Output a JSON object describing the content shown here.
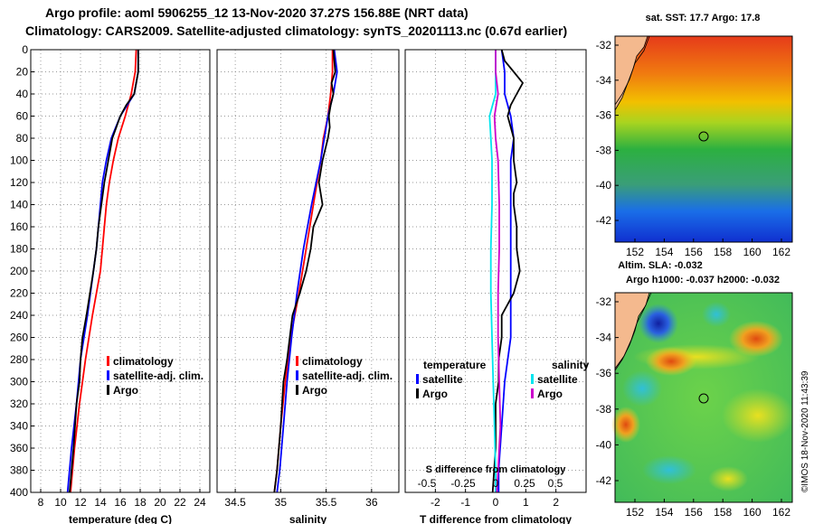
{
  "title_line1": "Argo profile: aoml 5906255_12 13-Nov-2020 37.27S 156.88E (NRT data)",
  "title_line2": "Climatology: CARS2009. Satellite-adjusted climatology: synTS_20201113.nc (0.67d earlier)",
  "watermark": "©IMOS 18-Nov-2020 11:43:39",
  "colors": {
    "climatology": "#ff0000",
    "satellite": "#0000ff",
    "argo": "#000000",
    "sat_salinity": "#00e5ee",
    "argo_salinity": "#cc00cc"
  },
  "chart_data": [
    {
      "id": "temperature",
      "type": "line",
      "xlabel": "temperature (deg C)",
      "xlim": [
        7,
        25
      ],
      "xticks": [
        "8",
        "10",
        "12",
        "14",
        "16",
        "18",
        "20",
        "22",
        "24"
      ],
      "xtick_values": [
        8,
        10,
        12,
        14,
        16,
        18,
        20,
        22,
        24
      ],
      "ylim": [
        0,
        400
      ],
      "yticks": [
        "0",
        "20",
        "40",
        "60",
        "80",
        "100",
        "120",
        "140",
        "160",
        "180",
        "200",
        "220",
        "240",
        "260",
        "280",
        "300",
        "320",
        "340",
        "360",
        "380",
        "400"
      ],
      "ytick_values": [
        0,
        20,
        40,
        60,
        80,
        100,
        120,
        140,
        160,
        180,
        200,
        220,
        240,
        260,
        280,
        300,
        320,
        340,
        360,
        380,
        400
      ],
      "legend": [
        "climatology",
        "satellite-adj. clim.",
        "Argo"
      ],
      "series": [
        {
          "name": "climatology",
          "color": "#ff0000",
          "depth": [
            0,
            20,
            40,
            60,
            80,
            100,
            120,
            140,
            160,
            180,
            200,
            240,
            280,
            320,
            360,
            400
          ],
          "values": [
            17.6,
            17.5,
            17.1,
            16.5,
            15.8,
            15.3,
            14.9,
            14.6,
            14.4,
            14.2,
            14.0,
            13.2,
            12.5,
            11.9,
            11.4,
            11.0
          ]
        },
        {
          "name": "satellite-adj. clim.",
          "color": "#0000ff",
          "depth": [
            0,
            10,
            20,
            40,
            60,
            80,
            100,
            120,
            140,
            160,
            180,
            200,
            240,
            280,
            320,
            360,
            400
          ],
          "values": [
            17.8,
            17.8,
            17.8,
            17.4,
            16.0,
            15.1,
            14.6,
            14.2,
            14.0,
            13.8,
            13.6,
            13.3,
            12.7,
            12.0,
            11.6,
            11.1,
            10.7
          ]
        },
        {
          "name": "Argo",
          "color": "#000000",
          "depth": [
            0,
            10,
            20,
            30,
            40,
            50,
            60,
            70,
            80,
            100,
            120,
            140,
            160,
            180,
            200,
            240,
            260,
            280,
            300,
            320,
            360,
            380,
            400
          ],
          "values": [
            17.8,
            17.8,
            17.8,
            17.6,
            17.4,
            16.6,
            16.0,
            15.6,
            15.2,
            14.8,
            14.4,
            14.1,
            13.8,
            13.6,
            13.3,
            12.6,
            12.2,
            12.0,
            11.9,
            11.6,
            11.3,
            11.1,
            10.9
          ]
        }
      ]
    },
    {
      "id": "salinity",
      "type": "line",
      "xlabel": "salinity",
      "xlim": [
        34.3,
        36.3
      ],
      "xticks": [
        "34.5",
        "35",
        "35.5",
        "36"
      ],
      "xtick_values": [
        34.5,
        35,
        35.5,
        36
      ],
      "ylim": [
        0,
        400
      ],
      "legend": [
        "climatology",
        "satellite-adj. clim.",
        "Argo"
      ],
      "series": [
        {
          "name": "climatology",
          "color": "#ff0000",
          "depth": [
            0,
            20,
            40,
            60,
            80,
            100,
            140,
            180,
            220,
            260,
            300,
            340,
            380,
            400
          ],
          "values": [
            35.57,
            35.57,
            35.55,
            35.52,
            35.47,
            35.44,
            35.36,
            35.28,
            35.2,
            35.11,
            35.05,
            35.0,
            34.96,
            34.93
          ]
        },
        {
          "name": "satellite-adj. clim.",
          "color": "#0000ff",
          "depth": [
            0,
            20,
            40,
            60,
            80,
            100,
            140,
            180,
            220,
            260,
            300,
            340,
            380,
            400
          ],
          "values": [
            35.59,
            35.62,
            35.58,
            35.52,
            35.48,
            35.44,
            35.34,
            35.25,
            35.18,
            35.12,
            35.07,
            35.03,
            34.99,
            34.96
          ]
        },
        {
          "name": "Argo",
          "color": "#000000",
          "depth": [
            0,
            10,
            20,
            30,
            40,
            50,
            60,
            70,
            80,
            100,
            120,
            140,
            160,
            180,
            200,
            220,
            240,
            260,
            280,
            300,
            340,
            380,
            400
          ],
          "values": [
            35.58,
            35.59,
            35.6,
            35.56,
            35.58,
            35.55,
            35.53,
            35.54,
            35.52,
            35.46,
            35.42,
            35.46,
            35.36,
            35.33,
            35.28,
            35.21,
            35.13,
            35.1,
            35.07,
            35.03,
            35.0,
            34.96,
            34.93
          ]
        }
      ]
    },
    {
      "id": "difference",
      "type": "line",
      "xlabel": "T difference from climatology",
      "xlim": [
        -3,
        3
      ],
      "xticks": [
        "-2",
        "-1",
        "0",
        "1",
        "2"
      ],
      "xtick_values": [
        -2,
        -1,
        0,
        1,
        2
      ],
      "xlabel2": "S difference from climatology",
      "xticks2": [
        "-0.5",
        "-0.25",
        "0",
        "0.25",
        "0.5"
      ],
      "ylim": [
        0,
        400
      ],
      "legend_t_title": "temperature",
      "legend_s_title": "salinity",
      "legend_t": [
        "satellite",
        "Argo"
      ],
      "legend_s": [
        "satellite",
        "Argo"
      ],
      "series": [
        {
          "name": "T satellite",
          "color": "#0000ff",
          "depth": [
            0,
            20,
            40,
            60,
            80,
            100,
            140,
            180,
            220,
            260,
            300,
            340,
            380,
            400
          ],
          "values": [
            0.2,
            0.3,
            0.3,
            0.5,
            0.6,
            0.5,
            0.5,
            0.5,
            0.5,
            0.5,
            0.3,
            0.2,
            0.1,
            0.1
          ]
        },
        {
          "name": "T Argo",
          "color": "#000000",
          "depth": [
            0,
            10,
            20,
            30,
            40,
            50,
            60,
            70,
            80,
            100,
            120,
            130,
            140,
            160,
            180,
            200,
            220,
            240,
            260,
            280,
            300,
            320,
            360,
            400
          ],
          "values": [
            0.2,
            0.3,
            0.6,
            0.9,
            0.7,
            0.5,
            0.4,
            0.5,
            0.6,
            0.6,
            0.7,
            0.6,
            0.6,
            0.7,
            0.7,
            0.8,
            0.6,
            0.2,
            0.2,
            0.1,
            0.1,
            0.0,
            0.0,
            -0.1
          ]
        },
        {
          "name": "S satellite",
          "color": "#00e5ee",
          "depth": [
            0,
            20,
            40,
            60,
            80,
            100,
            140,
            180,
            220,
            260,
            300,
            340,
            380,
            400
          ],
          "values": [
            0.0,
            0.0,
            0.0,
            -0.05,
            -0.04,
            -0.03,
            -0.03,
            -0.04,
            -0.04,
            -0.03,
            -0.02,
            -0.01,
            0.0,
            0.0
          ]
        },
        {
          "name": "S Argo",
          "color": "#cc00cc",
          "depth": [
            0,
            20,
            40,
            60,
            80,
            100,
            140,
            180,
            220,
            260,
            300,
            340,
            380,
            400
          ],
          "values": [
            0.0,
            0.0,
            0.02,
            -0.01,
            0.0,
            0.02,
            0.03,
            0.03,
            0.02,
            0.02,
            0.03,
            0.04,
            0.02,
            0.01
          ]
        }
      ]
    }
  ],
  "maps": [
    {
      "id": "sst-map",
      "title": "sat. SST: 17.7 Argo: 17.8",
      "xticks": [
        "152",
        "154",
        "156",
        "158",
        "160",
        "162"
      ],
      "yticks": [
        "-32",
        "-34",
        "-36",
        "-38",
        "-40",
        "-42"
      ]
    },
    {
      "id": "sla-map",
      "title_top": "Altim. SLA: -0.032",
      "title": "Argo h1000: -0.037 h2000: -0.032",
      "xticks": [
        "152",
        "154",
        "156",
        "158",
        "160",
        "162"
      ],
      "yticks": [
        "-32",
        "-34",
        "-36",
        "-38",
        "-40",
        "-42"
      ]
    }
  ]
}
